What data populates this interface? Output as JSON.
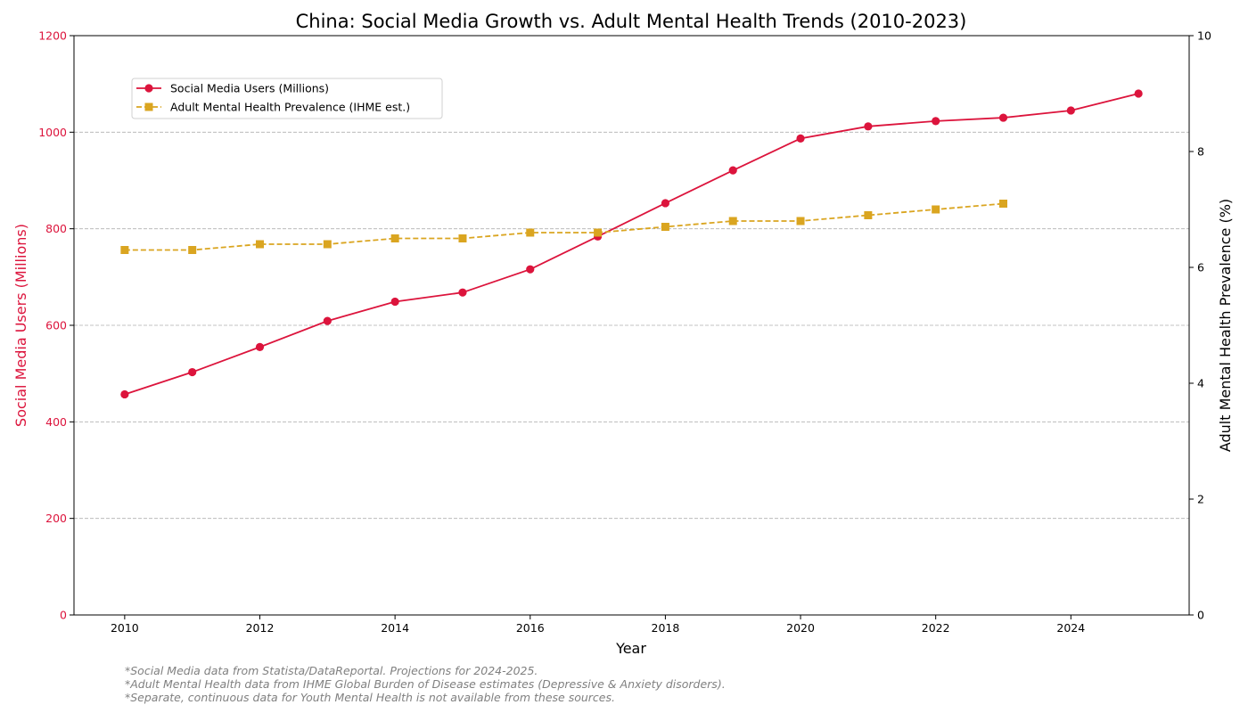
{
  "chart_data": {
    "type": "line",
    "title": "China: Social Media Growth vs. Adult Mental Health Trends (2010-2023)",
    "xlabel": "Year",
    "ylabel_left": "Social Media Users (Millions)",
    "ylabel_right": "Adult Mental Health Prevalence (%)",
    "xlim": [
      2009.25,
      2025.75
    ],
    "ylim_left": [
      0,
      1200
    ],
    "ylim_right": [
      0,
      10
    ],
    "x_ticks": [
      2010,
      2012,
      2014,
      2016,
      2018,
      2020,
      2022,
      2024
    ],
    "y_ticks_left": [
      0,
      200,
      400,
      600,
      800,
      1000,
      1200
    ],
    "y_ticks_right": [
      0,
      2,
      4,
      6,
      8,
      10
    ],
    "grid": "horizontal dashed",
    "legend_placement": "top-left",
    "series": [
      {
        "name": "Social Media Users (Millions)",
        "axis": "left",
        "color": "#DC143C",
        "line_style": "solid",
        "marker": "circle",
        "x": [
          2010,
          2011,
          2012,
          2013,
          2014,
          2015,
          2016,
          2017,
          2018,
          2019,
          2020,
          2021,
          2022,
          2023,
          2024,
          2025
        ],
        "values": [
          457,
          503,
          555,
          609,
          649,
          668,
          716,
          784,
          853,
          921,
          987,
          1012,
          1023,
          1030,
          1045,
          1080
        ]
      },
      {
        "name": "Adult Mental Health Prevalence (IHME est.)",
        "axis": "right",
        "color": "#DAA520",
        "line_style": "dashed",
        "marker": "square",
        "x": [
          2010,
          2011,
          2012,
          2013,
          2014,
          2015,
          2016,
          2017,
          2018,
          2019,
          2020,
          2021,
          2022,
          2023
        ],
        "values": [
          6.3,
          6.3,
          6.4,
          6.4,
          6.5,
          6.5,
          6.6,
          6.6,
          6.7,
          6.8,
          6.8,
          6.9,
          7.0,
          7.1
        ]
      }
    ],
    "left_axis_color": "#DC143C"
  },
  "footnotes": [
    "*Social Media data from Statista/DataReportal. Projections for 2024-2025.",
    "*Adult Mental Health data from IHME Global Burden of Disease estimates (Depressive & Anxiety disorders).",
    "*Separate, continuous data for Youth Mental Health is not available from these sources."
  ]
}
